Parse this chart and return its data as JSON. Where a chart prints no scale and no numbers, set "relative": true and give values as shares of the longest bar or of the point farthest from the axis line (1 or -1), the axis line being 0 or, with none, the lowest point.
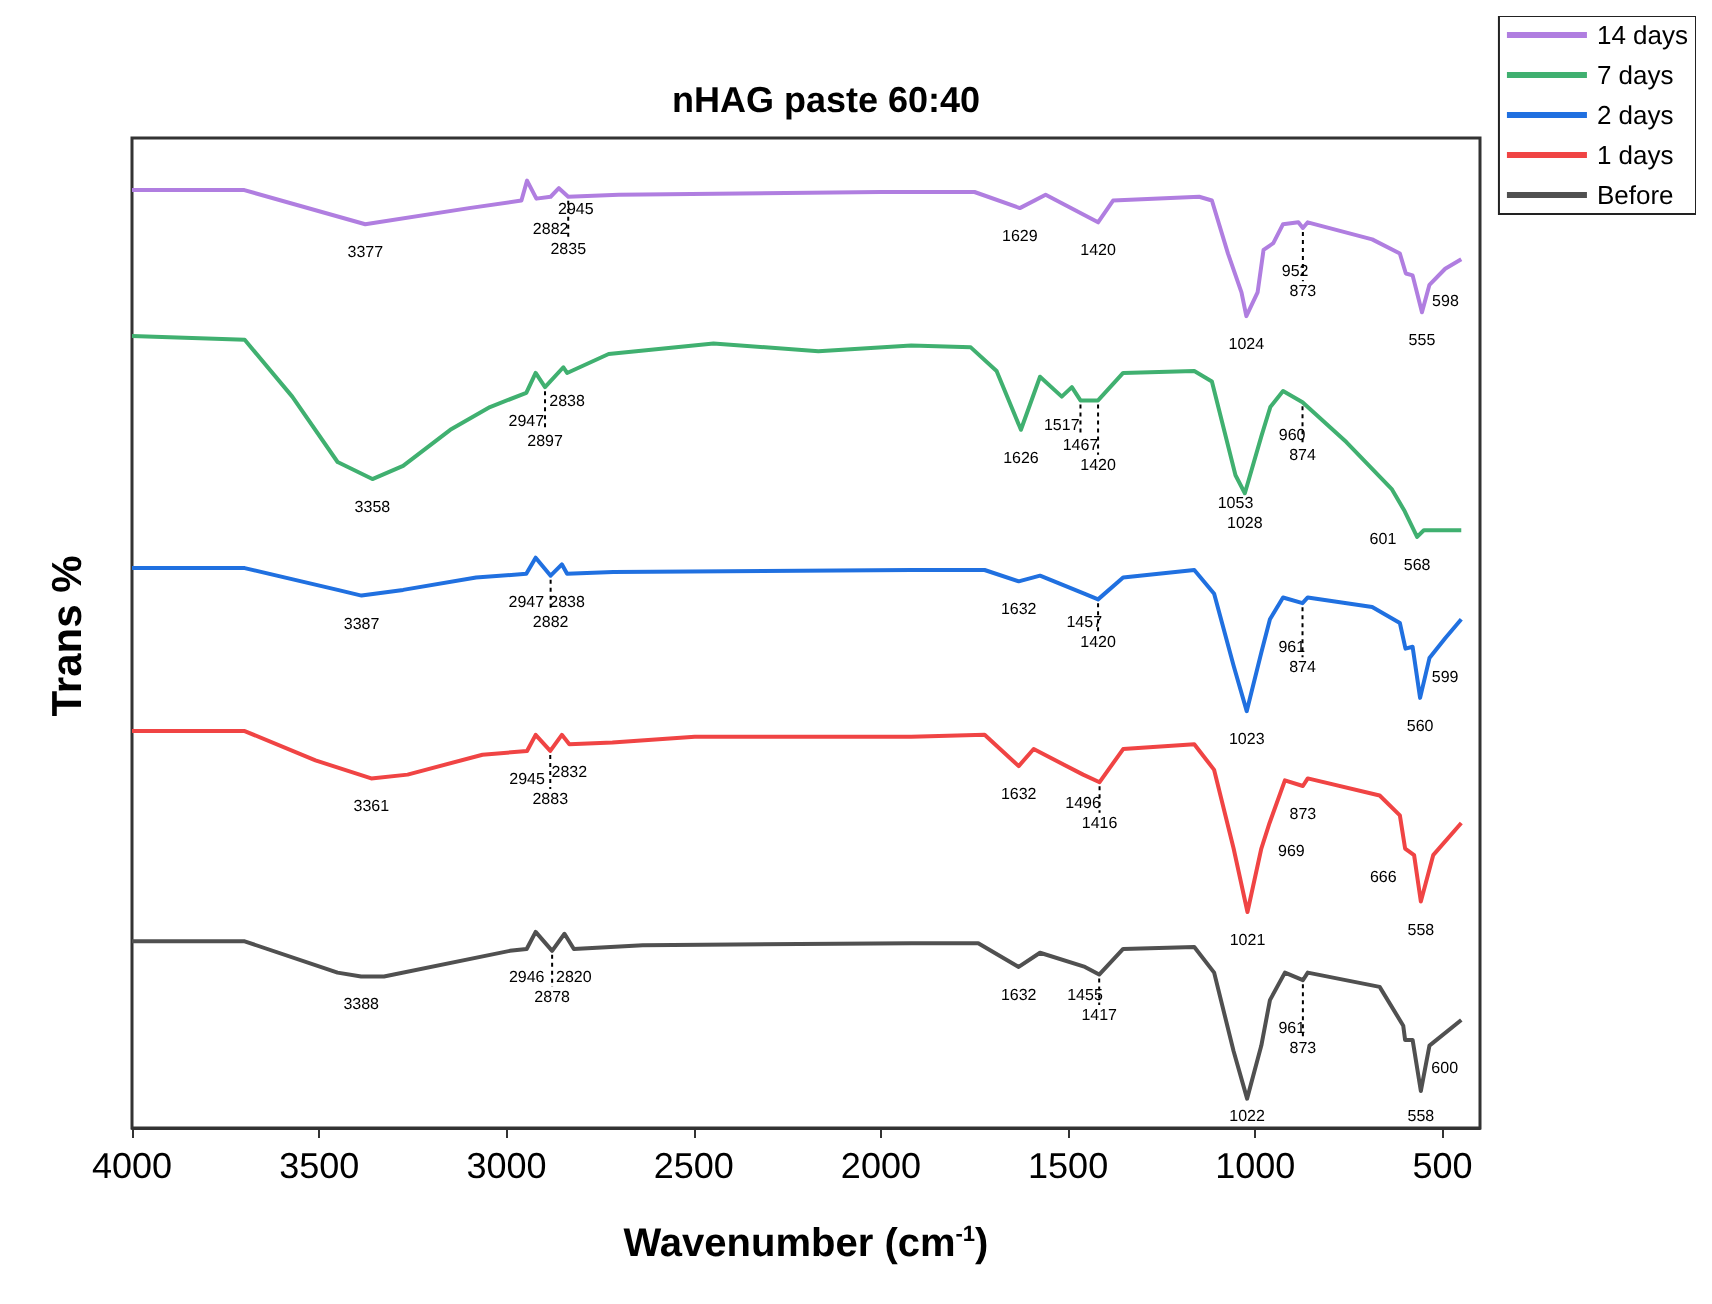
{
  "chart_data": {
    "type": "line",
    "title": "nHAG paste 60:40",
    "xlabel": "Wavenumber (cm$^{-1}$)",
    "ylabel": "Trans %",
    "relative": true,
    "xlim": [
      4000,
      400
    ],
    "xticks": [
      4000,
      3500,
      3000,
      2500,
      2000,
      1500,
      1000,
      500
    ],
    "legend": "top right",
    "grid": false,
    "series": [
      {
        "name": "14 days",
        "color": "#b07ee0",
        "x": [
          4000,
          3700,
          3377,
          3100,
          2960,
          2945,
          2920,
          2882,
          2860,
          2835,
          2700,
          2000,
          1750,
          1629,
          1560,
          1420,
          1380,
          1150,
          1116,
          1073,
          1037,
          1024,
          994,
          978,
          952,
          926,
          885,
          873,
          860,
          688,
          614,
          598,
          580,
          555,
          535,
          493,
          450
        ],
        "values": [
          0.99,
          0.99,
          0.954,
          0.971,
          0.979,
          1.0,
          0.981,
          0.983,
          0.992,
          0.983,
          0.985,
          0.988,
          0.988,
          0.971,
          0.985,
          0.956,
          0.979,
          0.983,
          0.979,
          0.923,
          0.882,
          0.857,
          0.882,
          0.927,
          0.934,
          0.954,
          0.956,
          0.95,
          0.956,
          0.938,
          0.923,
          0.902,
          0.9,
          0.861,
          0.89,
          0.907,
          0.917
        ]
      },
      {
        "name": "7 days",
        "color": "#40b070",
        "x": [
          4000,
          3699,
          3572,
          3451,
          3358,
          3276,
          3150,
          3044,
          2947,
          2922,
          2897,
          2848,
          2838,
          2727,
          2447,
          2167,
          1919,
          1760,
          1691,
          1626,
          1575,
          1517,
          1490,
          1467,
          1420,
          1353,
          1163,
          1116,
          1053,
          1028,
          984,
          960,
          926,
          874,
          757,
          635,
          601,
          568,
          550,
          450
        ],
        "values": [
          0.836,
          0.832,
          0.772,
          0.703,
          0.685,
          0.699,
          0.737,
          0.761,
          0.776,
          0.797,
          0.782,
          0.803,
          0.797,
          0.817,
          0.828,
          0.82,
          0.826,
          0.824,
          0.799,
          0.737,
          0.793,
          0.772,
          0.782,
          0.768,
          0.768,
          0.797,
          0.799,
          0.788,
          0.689,
          0.67,
          0.73,
          0.761,
          0.778,
          0.766,
          0.724,
          0.674,
          0.651,
          0.624,
          0.631,
          0.631
        ]
      },
      {
        "name": "2 days",
        "color": "#2070e0",
        "x": [
          4000,
          3699,
          3451,
          3387,
          3276,
          3081,
          2947,
          2922,
          2882,
          2852,
          2838,
          2715,
          1919,
          1723,
          1632,
          1575,
          1457,
          1420,
          1353,
          1163,
          1110,
          1058,
          1023,
          984,
          961,
          926,
          874,
          860,
          688,
          614,
          599,
          580,
          560,
          535,
          493,
          450
        ],
        "values": [
          0.591,
          0.591,
          0.568,
          0.562,
          0.568,
          0.581,
          0.585,
          0.602,
          0.583,
          0.595,
          0.585,
          0.587,
          0.589,
          0.589,
          0.577,
          0.583,
          0.564,
          0.558,
          0.581,
          0.589,
          0.564,
          0.488,
          0.44,
          0.502,
          0.537,
          0.56,
          0.554,
          0.56,
          0.55,
          0.533,
          0.506,
          0.508,
          0.454,
          0.496,
          0.517,
          0.537
        ]
      },
      {
        "name": "1 days",
        "color": "#f04444",
        "x": [
          4000,
          3699,
          3510,
          3361,
          3264,
          3064,
          2945,
          2922,
          2883,
          2852,
          2832,
          2717,
          2497,
          1919,
          1723,
          1632,
          1592,
          1460,
          1416,
          1353,
          1163,
          1110,
          1058,
          1021,
          984,
          962,
          921,
          873,
          860,
          668,
          614,
          600,
          576,
          558,
          525,
          450
        ],
        "values": [
          0.419,
          0.419,
          0.388,
          0.369,
          0.373,
          0.394,
          0.398,
          0.415,
          0.398,
          0.415,
          0.405,
          0.407,
          0.413,
          0.413,
          0.415,
          0.382,
          0.4,
          0.373,
          0.365,
          0.4,
          0.405,
          0.378,
          0.295,
          0.228,
          0.295,
          0.322,
          0.367,
          0.361,
          0.369,
          0.351,
          0.33,
          0.295,
          0.288,
          0.239,
          0.288,
          0.322
        ]
      },
      {
        "name": "Before",
        "color": "#505050",
        "x": [
          4000,
          3699,
          3451,
          3388,
          3327,
          2991,
          2946,
          2922,
          2878,
          2845,
          2820,
          2636,
          1919,
          1740,
          1632,
          1575,
          1455,
          1417,
          1353,
          1163,
          1110,
          1058,
          1022,
          984,
          961,
          921,
          873,
          860,
          668,
          605,
          600,
          580,
          558,
          535,
          450
        ],
        "values": [
          0.197,
          0.197,
          0.164,
          0.16,
          0.16,
          0.187,
          0.189,
          0.207,
          0.187,
          0.205,
          0.189,
          0.193,
          0.195,
          0.195,
          0.17,
          0.185,
          0.17,
          0.162,
          0.189,
          0.191,
          0.164,
          0.081,
          0.031,
          0.087,
          0.135,
          0.164,
          0.156,
          0.164,
          0.149,
          0.108,
          0.093,
          0.093,
          0.039,
          0.087,
          0.114
        ]
      }
    ],
    "annotations": [
      {
        "text": "3377",
        "x": 3377,
        "y": 0.954
      },
      {
        "text": "2945",
        "x": 2945,
        "y": 1.0
      },
      {
        "text": "2882",
        "x": 2882,
        "y": 0.983
      },
      {
        "text": "2835",
        "x": 2835,
        "y": 0.983
      },
      {
        "text": "1629",
        "x": 1629,
        "y": 0.971
      },
      {
        "text": "1420",
        "x": 1420,
        "y": 0.956
      },
      {
        "text": "1024",
        "x": 1024,
        "y": 0.857
      },
      {
        "text": "952",
        "x": 952,
        "y": 0.934
      },
      {
        "text": "873",
        "x": 873,
        "y": 0.95
      },
      {
        "text": "598",
        "x": 598,
        "y": 0.902
      },
      {
        "text": "555",
        "x": 555,
        "y": 0.861
      },
      {
        "text": "3358",
        "x": 3358,
        "y": 0.685
      },
      {
        "text": "2947",
        "x": 2947,
        "y": 0.776
      },
      {
        "text": "2897",
        "x": 2897,
        "y": 0.782
      },
      {
        "text": "2838",
        "x": 2838,
        "y": 0.797
      },
      {
        "text": "1626",
        "x": 1626,
        "y": 0.737
      },
      {
        "text": "1517",
        "x": 1517,
        "y": 0.772
      },
      {
        "text": "1467",
        "x": 1467,
        "y": 0.768
      },
      {
        "text": "1420",
        "x": 1420,
        "y": 0.768
      },
      {
        "text": "1053",
        "x": 1053,
        "y": 0.689
      },
      {
        "text": "1028",
        "x": 1028,
        "y": 0.67
      },
      {
        "text": "960",
        "x": 960,
        "y": 0.761
      },
      {
        "text": "874",
        "x": 874,
        "y": 0.766
      },
      {
        "text": "601",
        "x": 601,
        "y": 0.651
      },
      {
        "text": "568",
        "x": 568,
        "y": 0.624
      },
      {
        "text": "3387",
        "x": 3387,
        "y": 0.562
      },
      {
        "text": "2947",
        "x": 2947,
        "y": 0.585
      },
      {
        "text": "2882",
        "x": 2882,
        "y": 0.583
      },
      {
        "text": "2838",
        "x": 2838,
        "y": 0.585
      },
      {
        "text": "1632",
        "x": 1632,
        "y": 0.577
      },
      {
        "text": "1457",
        "x": 1457,
        "y": 0.564
      },
      {
        "text": "1420",
        "x": 1420,
        "y": 0.558
      },
      {
        "text": "1023",
        "x": 1023,
        "y": 0.44
      },
      {
        "text": "961",
        "x": 961,
        "y": 0.537
      },
      {
        "text": "874",
        "x": 874,
        "y": 0.554
      },
      {
        "text": "599",
        "x": 599,
        "y": 0.506
      },
      {
        "text": "560",
        "x": 560,
        "y": 0.454
      },
      {
        "text": "3361",
        "x": 3361,
        "y": 0.369
      },
      {
        "text": "2945",
        "x": 2945,
        "y": 0.398
      },
      {
        "text": "2883",
        "x": 2883,
        "y": 0.398
      },
      {
        "text": "2832",
        "x": 2832,
        "y": 0.405
      },
      {
        "text": "1632",
        "x": 1632,
        "y": 0.382
      },
      {
        "text": "1496",
        "x": 1460,
        "y": 0.373
      },
      {
        "text": "1416",
        "x": 1416,
        "y": 0.365
      },
      {
        "text": "1021",
        "x": 1021,
        "y": 0.228
      },
      {
        "text": "969",
        "x": 962,
        "y": 0.322
      },
      {
        "text": "873",
        "x": 873,
        "y": 0.361
      },
      {
        "text": "666",
        "x": 600,
        "y": 0.295
      },
      {
        "text": "558",
        "x": 558,
        "y": 0.239
      },
      {
        "text": "3388",
        "x": 3388,
        "y": 0.16
      },
      {
        "text": "2946",
        "x": 2946,
        "y": 0.189
      },
      {
        "text": "2878",
        "x": 2878,
        "y": 0.187
      },
      {
        "text": "2820",
        "x": 2820,
        "y": 0.189
      },
      {
        "text": "1632",
        "x": 1632,
        "y": 0.17
      },
      {
        "text": "1455",
        "x": 1455,
        "y": 0.17
      },
      {
        "text": "1417",
        "x": 1417,
        "y": 0.162
      },
      {
        "text": "1022",
        "x": 1022,
        "y": 0.031
      },
      {
        "text": "961",
        "x": 961,
        "y": 0.135
      },
      {
        "text": "873",
        "x": 873,
        "y": 0.156
      },
      {
        "text": "600",
        "x": 600,
        "y": 0.093
      },
      {
        "text": "558",
        "x": 558,
        "y": 0.039
      }
    ]
  }
}
